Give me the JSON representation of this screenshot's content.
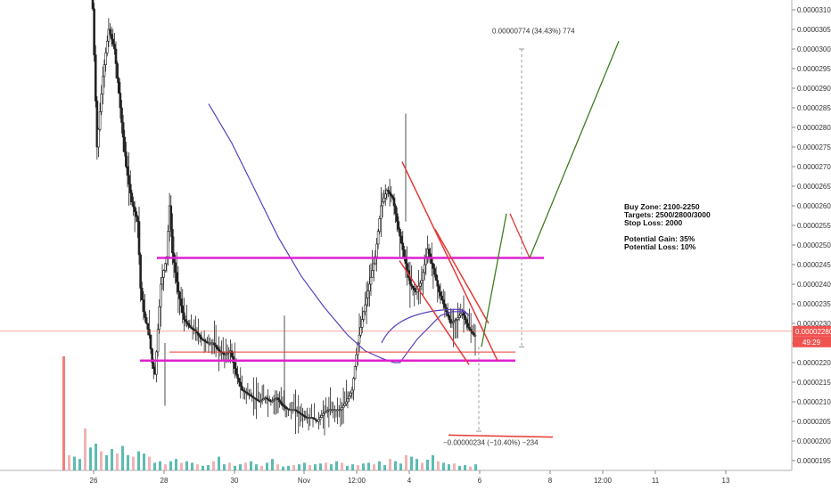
{
  "chart_data": {
    "type": "candlestick",
    "y_axis": {
      "ticks": [
        "0.00003100",
        "0.00003050",
        "0.00003000",
        "0.00002950",
        "0.00002900",
        "0.00002850",
        "0.00002800",
        "0.00002750",
        "0.00002700",
        "0.00002650",
        "0.00002600",
        "0.00002550",
        "0.00002500",
        "0.00002450",
        "0.00002400",
        "0.00002350",
        "0.00002300",
        "0.00002250",
        "0.00002200",
        "0.00002150",
        "0.00002100",
        "0.00002050",
        "0.00002000",
        "0.00001950"
      ],
      "tick_values": [
        3100,
        3050,
        3000,
        2950,
        2900,
        2850,
        2800,
        2750,
        2700,
        2650,
        2600,
        2550,
        2500,
        2450,
        2400,
        2350,
        2300,
        2250,
        2200,
        2150,
        2100,
        2050,
        2000,
        1950
      ],
      "range": [
        1925,
        3125
      ]
    },
    "x_axis": {
      "ticks": [
        "26",
        "28",
        "30",
        "Nov",
        "12:00",
        "4",
        "6",
        "8",
        "12:00",
        "11",
        "13"
      ]
    },
    "current_price": {
      "label": "0.00002280",
      "countdown": "49:29",
      "value": 2280,
      "color": "#ef5350"
    },
    "levels": [
      {
        "name": "resistance",
        "value": 2467,
        "color": "#e020d0"
      },
      {
        "name": "support",
        "value": 2205,
        "color": "#e020d0"
      },
      {
        "name": "support-red",
        "value": 2227,
        "color": "#e53935"
      }
    ],
    "projection_top_label": "0.00000774 (34.43%) 774",
    "projection_bottom_label": "−0.00000234 (−10.40%) −234",
    "notes": [
      "Buy Zone: 2100-2250",
      "Targets: 2500/2800/3000",
      "Stop Loss: 2000",
      "",
      "Potential Gain: 35%",
      "Potential Loss: 10%"
    ],
    "colors": {
      "candle": "#222222",
      "ma": "#5b3fbf",
      "channel": "#e53935",
      "projection": "#3f7d20",
      "volume_up": "#26a69a",
      "volume_down": "#ef9a9a",
      "volume_up_strong": "#26a69a",
      "volume_down_strong": "#ef5350"
    },
    "series_path": [
      [
        0,
        3220
      ],
      [
        2,
        2750
      ],
      [
        4,
        2930
      ],
      [
        6,
        3050
      ],
      [
        8,
        3000
      ],
      [
        10,
        2850
      ],
      [
        12,
        2700
      ],
      [
        14,
        2610
      ],
      [
        16,
        2560
      ],
      [
        17,
        2390
      ],
      [
        18,
        2330
      ],
      [
        20,
        2270
      ],
      [
        21,
        2200
      ],
      [
        22,
        2170
      ],
      [
        24,
        2400
      ],
      [
        26,
        2470
      ],
      [
        27,
        2600
      ],
      [
        28,
        2480
      ],
      [
        30,
        2380
      ],
      [
        32,
        2310
      ],
      [
        34,
        2290
      ],
      [
        36,
        2280
      ],
      [
        38,
        2260
      ],
      [
        40,
        2250
      ],
      [
        42,
        2250
      ],
      [
        44,
        2230
      ],
      [
        46,
        2220
      ],
      [
        48,
        2230
      ],
      [
        50,
        2170
      ],
      [
        52,
        2130
      ],
      [
        54,
        2120
      ],
      [
        56,
        2110
      ],
      [
        58,
        2100
      ],
      [
        60,
        2110
      ],
      [
        62,
        2100
      ],
      [
        64,
        2110
      ],
      [
        66,
        2090
      ],
      [
        68,
        2080
      ],
      [
        70,
        2080
      ],
      [
        72,
        2070
      ],
      [
        74,
        2060
      ],
      [
        76,
        2060
      ],
      [
        78,
        2050
      ],
      [
        80,
        2070
      ],
      [
        82,
        2080
      ],
      [
        84,
        2080
      ],
      [
        86,
        2080
      ],
      [
        88,
        2100
      ],
      [
        90,
        2130
      ],
      [
        92,
        2250
      ],
      [
        94,
        2330
      ],
      [
        96,
        2400
      ],
      [
        98,
        2470
      ],
      [
        100,
        2600
      ],
      [
        102,
        2640
      ],
      [
        104,
        2620
      ],
      [
        106,
        2540
      ],
      [
        108,
        2470
      ],
      [
        110,
        2400
      ],
      [
        112,
        2380
      ],
      [
        114,
        2410
      ],
      [
        116,
        2490
      ],
      [
        118,
        2440
      ],
      [
        120,
        2380
      ],
      [
        122,
        2340
      ],
      [
        124,
        2300
      ],
      [
        126,
        2310
      ],
      [
        128,
        2330
      ],
      [
        130,
        2290
      ],
      [
        132,
        2270
      ]
    ],
    "volumes": [
      70,
      20,
      18,
      15,
      55,
      30,
      35,
      25,
      20,
      28,
      22,
      32,
      20,
      18,
      25,
      22,
      18,
      10,
      12,
      8,
      12,
      15,
      10,
      12,
      10,
      8,
      6,
      7,
      12,
      18,
      8,
      10,
      6,
      8,
      10,
      12,
      8,
      6,
      10,
      15,
      8,
      5,
      6,
      7,
      8,
      10,
      7,
      8,
      9,
      10,
      8,
      12,
      10,
      6,
      8,
      7,
      9,
      10,
      8,
      12,
      7,
      15,
      12,
      9,
      20,
      18,
      15,
      10,
      14,
      20,
      12,
      10,
      8,
      9,
      6,
      7,
      5,
      8
    ],
    "ma_points": [
      [
        0,
        2860
      ],
      [
        8,
        2760
      ],
      [
        16,
        2640
      ],
      [
        24,
        2520
      ],
      [
        32,
        2420
      ],
      [
        40,
        2340
      ],
      [
        48,
        2270
      ],
      [
        54,
        2230
      ],
      [
        60,
        2210
      ],
      [
        64,
        2200
      ],
      [
        66,
        2200
      ],
      [
        68,
        2220
      ],
      [
        72,
        2260
      ],
      [
        76,
        2290
      ],
      [
        80,
        2320
      ],
      [
        84,
        2330
      ],
      [
        88,
        2330
      ],
      [
        90,
        2320
      ]
    ]
  }
}
